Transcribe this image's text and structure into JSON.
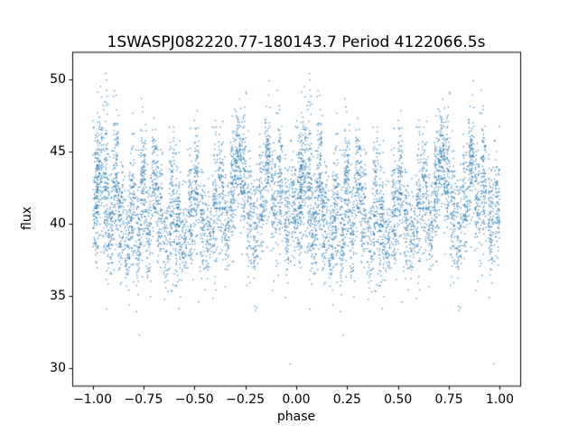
{
  "chart_data": {
    "type": "scatter",
    "title": "1SWASPJ082220.77-180143.7 Period 4122066.5s",
    "xlabel": "phase",
    "ylabel": "flux",
    "xlim": [
      -1.1,
      1.1
    ],
    "ylim": [
      28.8,
      51.9
    ],
    "xticks": [
      -1.0,
      -0.75,
      -0.5,
      -0.25,
      0.0,
      0.25,
      0.5,
      0.75,
      1.0
    ],
    "xtick_labels": [
      "−1.00",
      "−0.75",
      "−0.50",
      "−0.25",
      "0.00",
      "0.25",
      "0.50",
      "0.75",
      "1.00"
    ],
    "yticks": [
      30,
      35,
      40,
      45,
      50
    ],
    "ytick_labels": [
      "30",
      "35",
      "40",
      "45",
      "50"
    ],
    "marker_color": "#1f77b4",
    "marker_alpha": 0.85,
    "marker_size_px": 1.3,
    "background_color": "#ffffff",
    "axes_color": "#000000",
    "grid": false,
    "legend": "none",
    "phase_fold_note": "data plotted at phase and phase-1",
    "seed": 7,
    "strip_width": 0.013,
    "flux_clip": [
      30.2,
      50.5
    ],
    "strips": [
      {
        "phase": 0.015,
        "mean": 42.0,
        "sd": 2.2,
        "count": 140
      },
      {
        "phase": 0.035,
        "mean": 43.5,
        "sd": 2.6,
        "count": 110
      },
      {
        "phase": 0.065,
        "mean": 42.5,
        "sd": 3.0,
        "count": 130
      },
      {
        "phase": 0.09,
        "mean": 40.0,
        "sd": 1.8,
        "count": 90
      },
      {
        "phase": 0.115,
        "mean": 43.0,
        "sd": 2.4,
        "count": 120
      },
      {
        "phase": 0.14,
        "mean": 40.5,
        "sd": 2.0,
        "count": 100
      },
      {
        "phase": 0.17,
        "mean": 38.8,
        "sd": 1.6,
        "count": 80
      },
      {
        "phase": 0.195,
        "mean": 41.5,
        "sd": 2.2,
        "count": 110
      },
      {
        "phase": 0.225,
        "mean": 39.5,
        "sd": 2.0,
        "count": 90
      },
      {
        "phase": 0.25,
        "mean": 42.5,
        "sd": 2.2,
        "count": 120
      },
      {
        "phase": 0.275,
        "mean": 40.0,
        "sd": 1.8,
        "count": 80
      },
      {
        "phase": 0.305,
        "mean": 43.0,
        "sd": 1.8,
        "count": 100
      },
      {
        "phase": 0.33,
        "mean": 41.0,
        "sd": 2.0,
        "count": 90
      },
      {
        "phase": 0.36,
        "mean": 38.5,
        "sd": 1.5,
        "count": 60
      },
      {
        "phase": 0.39,
        "mean": 41.5,
        "sd": 2.2,
        "count": 110
      },
      {
        "phase": 0.42,
        "mean": 40.0,
        "sd": 2.4,
        "count": 120
      },
      {
        "phase": 0.45,
        "mean": 38.8,
        "sd": 1.6,
        "count": 70
      },
      {
        "phase": 0.48,
        "mean": 41.0,
        "sd": 2.0,
        "count": 100
      },
      {
        "phase": 0.51,
        "mean": 42.5,
        "sd": 2.0,
        "count": 110
      },
      {
        "phase": 0.54,
        "mean": 40.0,
        "sd": 1.8,
        "count": 80
      },
      {
        "phase": 0.57,
        "mean": 38.8,
        "sd": 1.6,
        "count": 70
      },
      {
        "phase": 0.6,
        "mean": 41.0,
        "sd": 2.2,
        "count": 100
      },
      {
        "phase": 0.63,
        "mean": 42.0,
        "sd": 2.0,
        "count": 100
      },
      {
        "phase": 0.66,
        "mean": 40.0,
        "sd": 2.0,
        "count": 80
      },
      {
        "phase": 0.69,
        "mean": 43.0,
        "sd": 2.0,
        "count": 120
      },
      {
        "phase": 0.715,
        "mean": 44.5,
        "sd": 1.6,
        "count": 100
      },
      {
        "phase": 0.74,
        "mean": 43.5,
        "sd": 2.0,
        "count": 110
      },
      {
        "phase": 0.77,
        "mean": 41.0,
        "sd": 2.2,
        "count": 90
      },
      {
        "phase": 0.8,
        "mean": 39.5,
        "sd": 2.0,
        "count": 80
      },
      {
        "phase": 0.83,
        "mean": 41.5,
        "sd": 2.0,
        "count": 90
      },
      {
        "phase": 0.86,
        "mean": 44.0,
        "sd": 2.2,
        "count": 120
      },
      {
        "phase": 0.89,
        "mean": 41.5,
        "sd": 2.2,
        "count": 90
      },
      {
        "phase": 0.92,
        "mean": 43.0,
        "sd": 2.4,
        "count": 110
      },
      {
        "phase": 0.955,
        "mean": 40.5,
        "sd": 2.0,
        "count": 100
      },
      {
        "phase": 0.985,
        "mean": 41.5,
        "sd": 2.0,
        "count": 90
      }
    ],
    "outliers": [
      {
        "phase": 0.065,
        "flux": 50.4
      },
      {
        "phase": 0.04,
        "flux": 49.5
      },
      {
        "phase": 0.115,
        "flux": 48.9
      },
      {
        "phase": 0.755,
        "flux": 49.0
      },
      {
        "phase": 0.18,
        "flux": 34.4
      },
      {
        "phase": 0.23,
        "flux": 32.3
      },
      {
        "phase": 0.52,
        "flux": 34.6
      },
      {
        "phase": 0.8,
        "flux": 34.0
      },
      {
        "phase": 0.97,
        "flux": 30.3
      }
    ]
  }
}
